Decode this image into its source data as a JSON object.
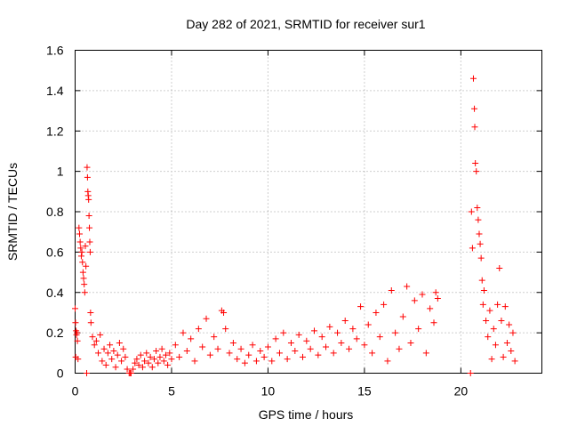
{
  "chart_data": {
    "type": "scatter",
    "title": "Day 282 of 2021, SRMTID for receiver sur1",
    "xlabel": "GPS time / hours",
    "ylabel": "SRMTID / TECUs",
    "xlim": [
      0,
      24.2
    ],
    "ylim": [
      0,
      1.6
    ],
    "x_ticks": [
      0,
      5,
      10,
      15,
      20
    ],
    "x_tick_labels": [
      "0",
      "5",
      "10",
      "15",
      "20"
    ],
    "y_ticks": [
      0,
      0.2,
      0.4,
      0.6,
      0.8,
      1,
      1.2,
      1.4,
      1.6
    ],
    "y_tick_labels": [
      "0",
      "0.2",
      "0.4",
      "0.6",
      "0.8",
      "1",
      "1.2",
      "1.4",
      "1.6"
    ],
    "grid": true,
    "marker": "+",
    "color": "#ff0000",
    "series": [
      {
        "name": "sur1",
        "points": [
          [
            0.0,
            0.32
          ],
          [
            0.02,
            0.25
          ],
          [
            0.03,
            0.08
          ],
          [
            0.05,
            0.21
          ],
          [
            0.07,
            0.19
          ],
          [
            0.1,
            0.2
          ],
          [
            0.12,
            0.16
          ],
          [
            0.15,
            0.07
          ],
          [
            0.2,
            0.72
          ],
          [
            0.23,
            0.69
          ],
          [
            0.26,
            0.65
          ],
          [
            0.29,
            0.62
          ],
          [
            0.32,
            0.58
          ],
          [
            0.35,
            0.6
          ],
          [
            0.38,
            0.55
          ],
          [
            0.41,
            0.5
          ],
          [
            0.44,
            0.47
          ],
          [
            0.47,
            0.44
          ],
          [
            0.5,
            0.4
          ],
          [
            0.53,
            0.63
          ],
          [
            0.56,
            0.53
          ],
          [
            0.6,
            0.0
          ],
          [
            0.62,
            1.02
          ],
          [
            0.64,
            0.97
          ],
          [
            0.66,
            0.9
          ],
          [
            0.68,
            0.88
          ],
          [
            0.7,
            0.86
          ],
          [
            0.72,
            0.78
          ],
          [
            0.74,
            0.72
          ],
          [
            0.76,
            0.65
          ],
          [
            0.78,
            0.6
          ],
          [
            0.8,
            0.3
          ],
          [
            0.82,
            0.25
          ],
          [
            0.9,
            0.18
          ],
          [
            1.0,
            0.14
          ],
          [
            1.1,
            0.16
          ],
          [
            1.2,
            0.1
          ],
          [
            1.3,
            0.19
          ],
          [
            1.4,
            0.06
          ],
          [
            1.5,
            0.12
          ],
          [
            1.6,
            0.04
          ],
          [
            1.7,
            0.1
          ],
          [
            1.8,
            0.14
          ],
          [
            1.9,
            0.07
          ],
          [
            2.0,
            0.11
          ],
          [
            2.1,
            0.03
          ],
          [
            2.2,
            0.09
          ],
          [
            2.3,
            0.15
          ],
          [
            2.4,
            0.06
          ],
          [
            2.5,
            0.12
          ],
          [
            2.6,
            0.08
          ],
          [
            2.7,
            0.02
          ],
          [
            2.8,
            0.0
          ],
          [
            2.85,
            0.0
          ],
          [
            2.9,
            0.0
          ],
          [
            3.0,
            0.02
          ],
          [
            3.1,
            0.05
          ],
          [
            3.2,
            0.07
          ],
          [
            3.3,
            0.04
          ],
          [
            3.4,
            0.09
          ],
          [
            3.5,
            0.03
          ],
          [
            3.6,
            0.06
          ],
          [
            3.7,
            0.1
          ],
          [
            3.8,
            0.05
          ],
          [
            3.9,
            0.08
          ],
          [
            4.0,
            0.03
          ],
          [
            4.1,
            0.07
          ],
          [
            4.2,
            0.11
          ],
          [
            4.3,
            0.05
          ],
          [
            4.4,
            0.08
          ],
          [
            4.5,
            0.12
          ],
          [
            4.6,
            0.06
          ],
          [
            4.7,
            0.09
          ],
          [
            4.8,
            0.04
          ],
          [
            4.9,
            0.1
          ],
          [
            5.0,
            0.07
          ],
          [
            5.2,
            0.14
          ],
          [
            5.4,
            0.08
          ],
          [
            5.6,
            0.2
          ],
          [
            5.8,
            0.11
          ],
          [
            6.0,
            0.17
          ],
          [
            6.2,
            0.06
          ],
          [
            6.4,
            0.22
          ],
          [
            6.6,
            0.13
          ],
          [
            6.8,
            0.27
          ],
          [
            7.0,
            0.09
          ],
          [
            7.2,
            0.18
          ],
          [
            7.4,
            0.12
          ],
          [
            7.6,
            0.31
          ],
          [
            7.7,
            0.3
          ],
          [
            7.8,
            0.22
          ],
          [
            8.0,
            0.1
          ],
          [
            8.2,
            0.15
          ],
          [
            8.4,
            0.07
          ],
          [
            8.6,
            0.12
          ],
          [
            8.8,
            0.05
          ],
          [
            9.0,
            0.09
          ],
          [
            9.2,
            0.14
          ],
          [
            9.4,
            0.06
          ],
          [
            9.6,
            0.11
          ],
          [
            9.8,
            0.08
          ],
          [
            10.0,
            0.13
          ],
          [
            10.2,
            0.06
          ],
          [
            10.4,
            0.17
          ],
          [
            10.6,
            0.1
          ],
          [
            10.8,
            0.2
          ],
          [
            11.0,
            0.07
          ],
          [
            11.2,
            0.15
          ],
          [
            11.4,
            0.11
          ],
          [
            11.6,
            0.19
          ],
          [
            11.8,
            0.08
          ],
          [
            12.0,
            0.16
          ],
          [
            12.2,
            0.12
          ],
          [
            12.4,
            0.21
          ],
          [
            12.6,
            0.09
          ],
          [
            12.8,
            0.18
          ],
          [
            13.0,
            0.13
          ],
          [
            13.2,
            0.23
          ],
          [
            13.4,
            0.1
          ],
          [
            13.6,
            0.2
          ],
          [
            13.8,
            0.15
          ],
          [
            14.0,
            0.26
          ],
          [
            14.2,
            0.12
          ],
          [
            14.4,
            0.22
          ],
          [
            14.6,
            0.17
          ],
          [
            14.8,
            0.33
          ],
          [
            15.0,
            0.14
          ],
          [
            15.2,
            0.24
          ],
          [
            15.4,
            0.1
          ],
          [
            15.6,
            0.3
          ],
          [
            15.8,
            0.18
          ],
          [
            16.0,
            0.34
          ],
          [
            16.2,
            0.06
          ],
          [
            16.4,
            0.41
          ],
          [
            16.6,
            0.2
          ],
          [
            16.8,
            0.12
          ],
          [
            17.0,
            0.28
          ],
          [
            17.2,
            0.43
          ],
          [
            17.4,
            0.15
          ],
          [
            17.6,
            0.36
          ],
          [
            17.8,
            0.22
          ],
          [
            18.0,
            0.39
          ],
          [
            18.2,
            0.1
          ],
          [
            18.4,
            0.32
          ],
          [
            18.6,
            0.25
          ],
          [
            18.7,
            0.4
          ],
          [
            18.8,
            0.37
          ],
          [
            20.5,
            0.0
          ],
          [
            20.55,
            0.8
          ],
          [
            20.6,
            0.62
          ],
          [
            20.65,
            1.46
          ],
          [
            20.7,
            1.31
          ],
          [
            20.72,
            1.22
          ],
          [
            20.75,
            1.04
          ],
          [
            20.8,
            1.0
          ],
          [
            20.85,
            0.82
          ],
          [
            20.9,
            0.76
          ],
          [
            20.95,
            0.69
          ],
          [
            21.0,
            0.64
          ],
          [
            21.05,
            0.57
          ],
          [
            21.1,
            0.46
          ],
          [
            21.15,
            0.34
          ],
          [
            21.2,
            0.41
          ],
          [
            21.3,
            0.26
          ],
          [
            21.4,
            0.18
          ],
          [
            21.5,
            0.31
          ],
          [
            21.6,
            0.07
          ],
          [
            21.7,
            0.22
          ],
          [
            21.8,
            0.14
          ],
          [
            21.9,
            0.34
          ],
          [
            22.0,
            0.52
          ],
          [
            22.1,
            0.26
          ],
          [
            22.2,
            0.08
          ],
          [
            22.3,
            0.33
          ],
          [
            22.4,
            0.15
          ],
          [
            22.5,
            0.24
          ],
          [
            22.6,
            0.11
          ],
          [
            22.7,
            0.2
          ],
          [
            22.8,
            0.06
          ]
        ]
      }
    ]
  }
}
